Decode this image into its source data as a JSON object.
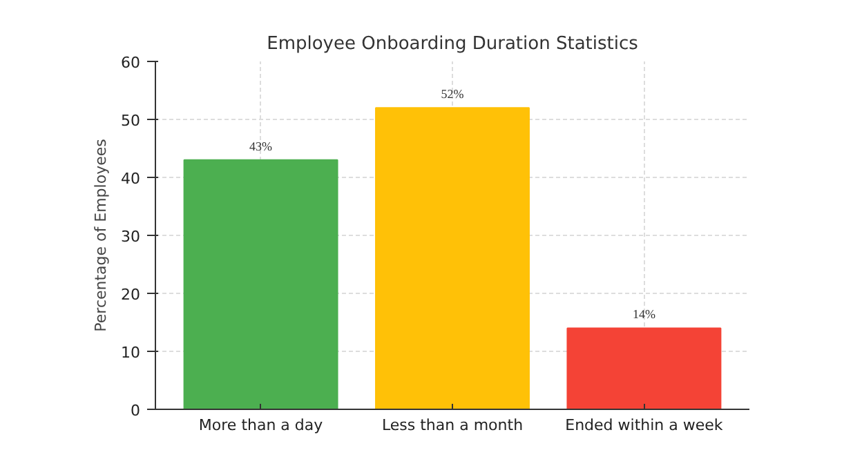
{
  "chart_data": {
    "type": "bar",
    "title": "Employee Onboarding Duration Statistics",
    "ylabel": "Percentage of Employees",
    "categories": [
      "More than a day",
      "Less than a month",
      "Ended within a week"
    ],
    "values": [
      43,
      52,
      14
    ],
    "colors": [
      "#4caf50",
      "#ffc107",
      "#f44336"
    ],
    "value_labels": [
      "43%",
      "52%",
      "14%"
    ],
    "ylim": [
      0,
      60
    ],
    "yticks": [
      0,
      10,
      20,
      30,
      40,
      50,
      60
    ],
    "grid": true
  }
}
